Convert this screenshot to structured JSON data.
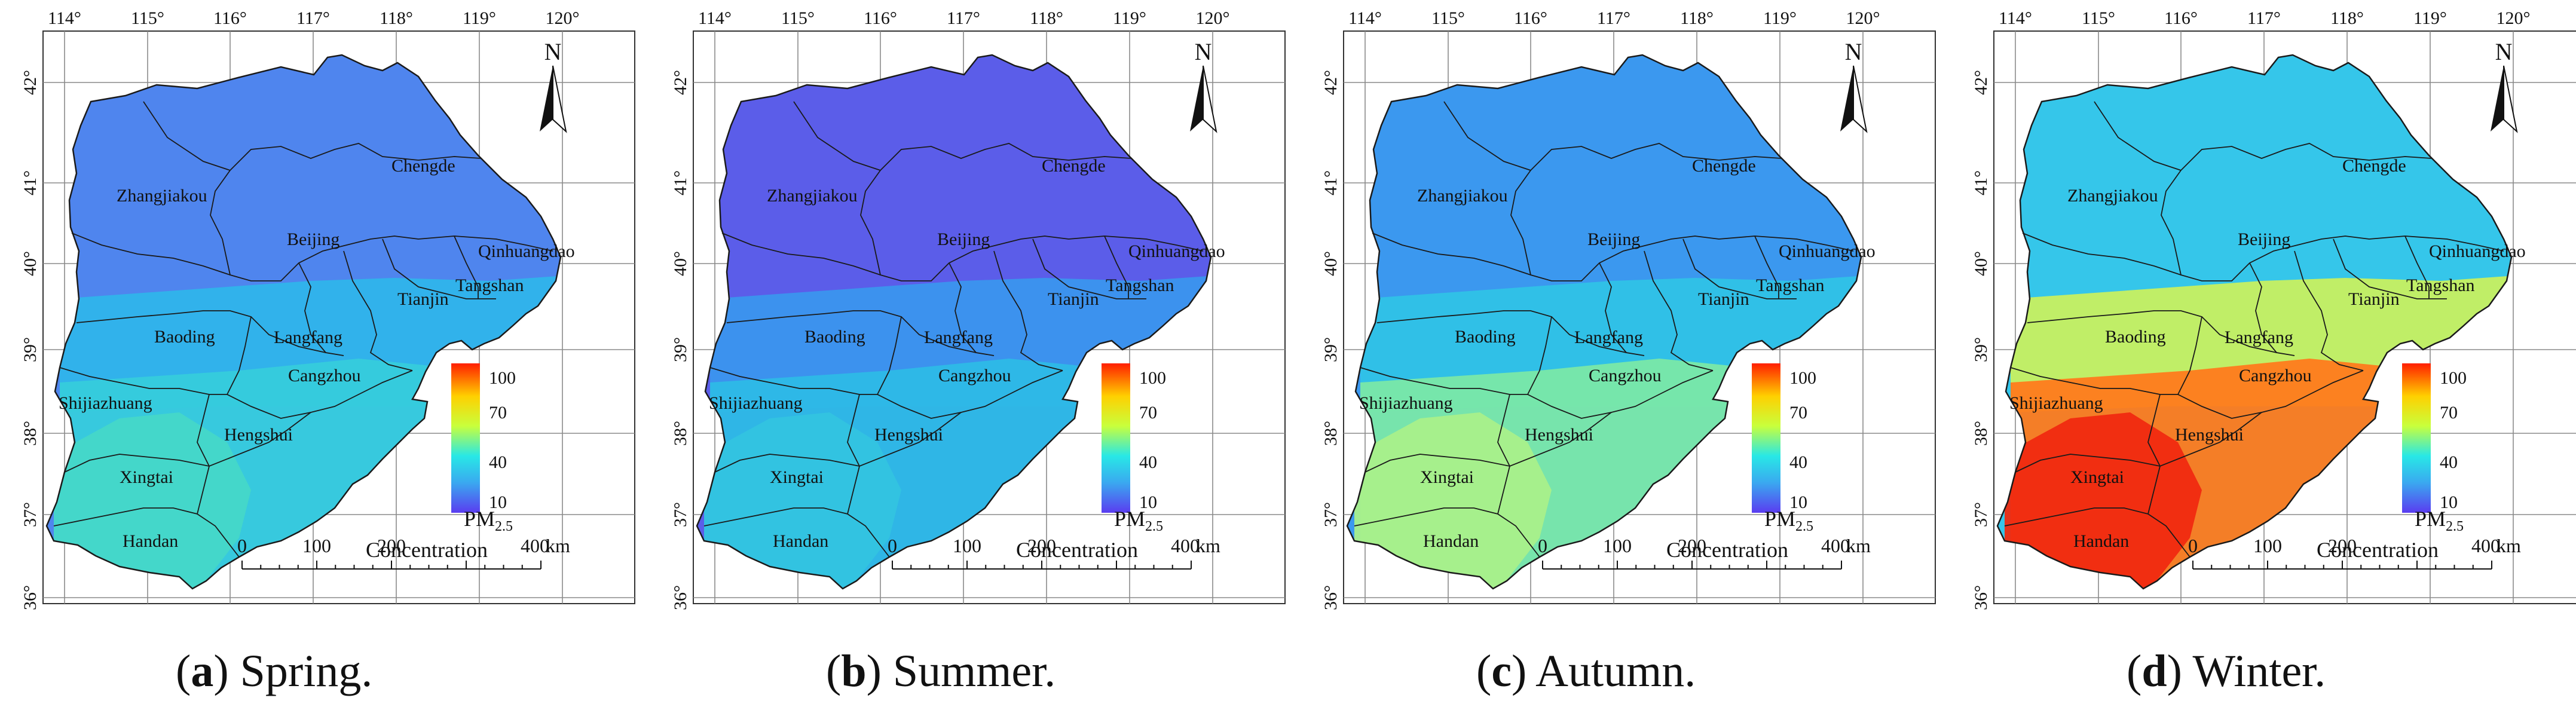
{
  "lon_labels": [
    "114°",
    "115°",
    "116°",
    "117°",
    "118°",
    "119°",
    "120°"
  ],
  "lat_labels": [
    "42°",
    "41°",
    "40°",
    "39°",
    "38°",
    "37°",
    "36°"
  ],
  "north_label": "N",
  "scale_bar": {
    "ticks": [
      "0",
      "100",
      "200",
      "400"
    ],
    "unit": "km"
  },
  "legend": {
    "title_main": "PM",
    "title_sub": "2.5",
    "title_line2": "Concentration",
    "ticks": [
      "100",
      "70",
      "40",
      "10"
    ],
    "colors": [
      "#ff1f00",
      "#ffd000",
      "#c8ff3c",
      "#28e8e6",
      "#3aa8f0",
      "#5a3cf0"
    ]
  },
  "cities": [
    "Chengde",
    "Zhangjiakou",
    "Beijing",
    "Qinhuangdao",
    "Tangshan",
    "Tianjin",
    "Baoding",
    "Langfang",
    "Cangzhou",
    "Shijiazhuang",
    "Hengshui",
    "Xingtai",
    "Handan"
  ],
  "panels": [
    {
      "letter": "a",
      "season": "Spring.",
      "id": "spring",
      "fills": {
        "north": "#4f85ee",
        "mid": "#2fb4ea",
        "south": "#36ccdc",
        "hot": "#45d8c8"
      }
    },
    {
      "letter": "b",
      "season": "Summer.",
      "id": "summer",
      "fills": {
        "north": "#5b5de9",
        "mid": "#3b95ee",
        "south": "#2dbbe6",
        "hot": "#33c4e0"
      }
    },
    {
      "letter": "c",
      "season": "Autumn.",
      "id": "autumn",
      "fills": {
        "north": "#3b98ef",
        "mid": "#2fc2e6",
        "south": "#7ae8a8",
        "hot": "#a9f08a"
      }
    },
    {
      "letter": "d",
      "season": "Winter.",
      "id": "winter",
      "fills": {
        "north": "#35c6ea",
        "mid": "#c8f060",
        "south": "#ff7a1c",
        "hot": "#f02a10"
      }
    }
  ]
}
